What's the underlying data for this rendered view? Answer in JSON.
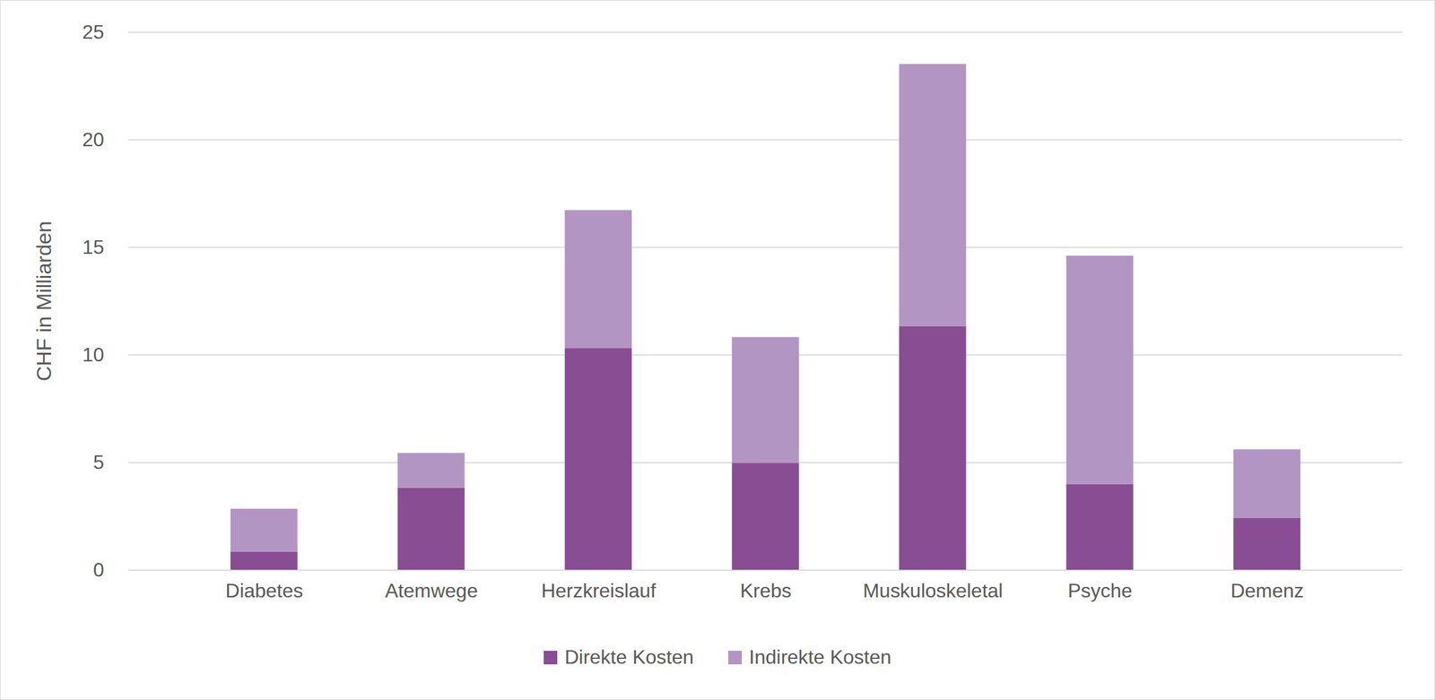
{
  "chart_data": {
    "type": "bar",
    "stacked": true,
    "grid": true,
    "legend": "bottom",
    "ylabel": "CHF in Milliarden",
    "categories": [
      "Diabetes",
      "Atemwege",
      "Herzkreislauf",
      "Krebs",
      "Muskuloskeletal",
      "Psyche",
      "Demenz"
    ],
    "series": [
      {
        "name": "Direkte Kosten",
        "color": "#884d92",
        "values": [
          0.85,
          3.82,
          10.31,
          4.97,
          11.33,
          3.99,
          2.42
        ]
      },
      {
        "name": "Indirekte Kosten",
        "color": "#b395c3",
        "values": [
          1.99,
          1.61,
          6.41,
          5.85,
          12.18,
          10.61,
          3.18
        ]
      }
    ],
    "ylim": [
      0,
      25
    ],
    "yticks": [
      0,
      5,
      10,
      15,
      20,
      25
    ]
  }
}
